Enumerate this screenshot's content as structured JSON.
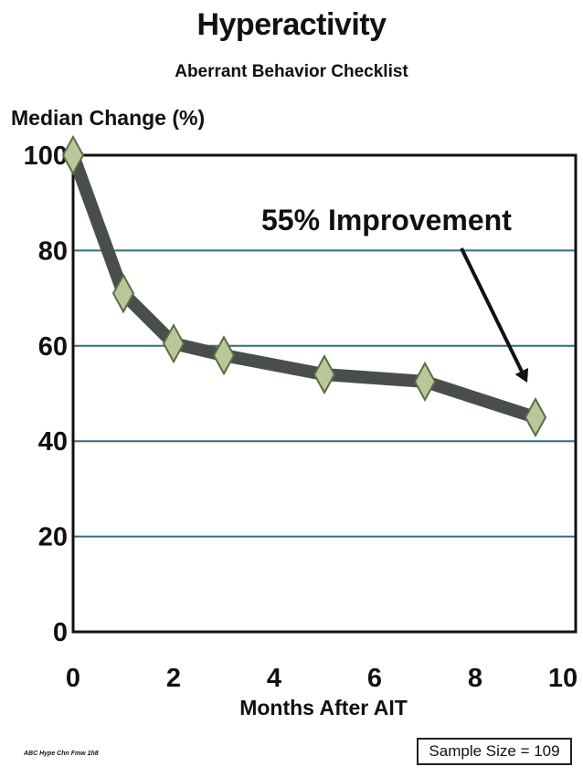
{
  "header": {
    "title": "Hyperactivity",
    "subtitle": "Aberrant Behavior Checklist"
  },
  "footnote": "ABC Hype Chn Fmw 1h8",
  "sample_box": "Sample Size = 109",
  "colors": {
    "line": "#4a4e4a",
    "marker_fill": "#b9c89a",
    "marker_stroke": "#5d6a44",
    "gridline": "#2f6f7f"
  },
  "chart_data": {
    "type": "line",
    "ylabel": "Median Change (%)",
    "xlabel": "Months After AIT",
    "xlim": [
      0,
      10
    ],
    "ylim": [
      0,
      100
    ],
    "x_ticks": [
      "0",
      "2",
      "4",
      "6",
      "8",
      "10"
    ],
    "y_ticks": [
      "0",
      "20",
      "40",
      "60",
      "80",
      "100"
    ],
    "grid": true,
    "series": [
      {
        "x": [
          0,
          1,
          2,
          3,
          5,
          7,
          9.2
        ],
        "y": [
          100,
          71,
          60.5,
          58,
          54,
          52.5,
          45
        ]
      }
    ],
    "annotation": "55% Improvement"
  }
}
